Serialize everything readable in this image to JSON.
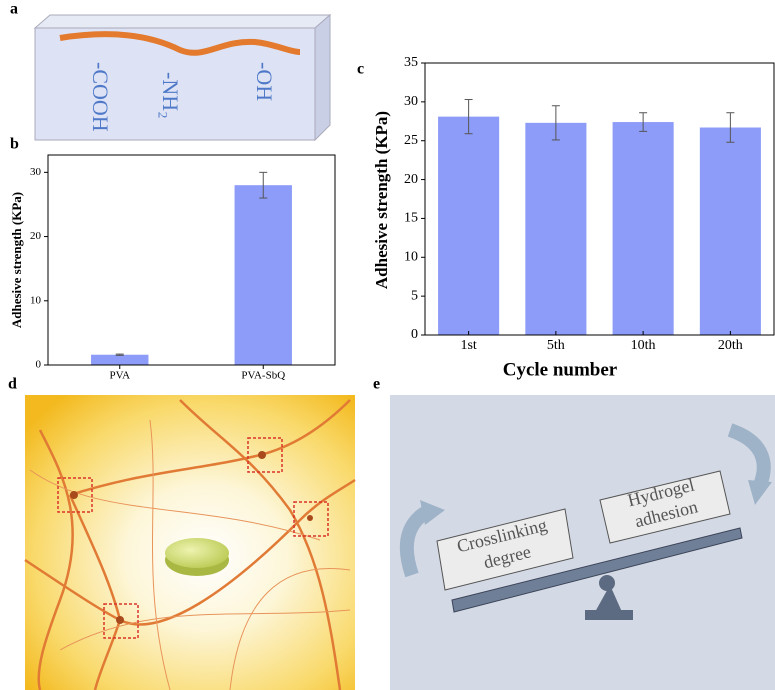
{
  "panels": {
    "a": {
      "label": "a",
      "groups": [
        "-COOH",
        "-NH₂",
        "-OH"
      ]
    },
    "b": {
      "label": "b"
    },
    "c": {
      "label": "c"
    },
    "d": {
      "label": "d"
    },
    "e": {
      "label": "e",
      "left_box": [
        "Crosslinking",
        "degree"
      ],
      "right_box": [
        "Hydrogel",
        "adhesion"
      ]
    }
  },
  "chart_data": [
    {
      "type": "bar",
      "y_label": "Adhesive strength (KPa)",
      "categories": [
        "PVA",
        "PVA-SbQ"
      ],
      "values": [
        1.6,
        28
      ],
      "errors": [
        0.1,
        2
      ],
      "color": "#8c9cf8",
      "ylim": [
        0,
        32.7
      ],
      "yticks": [
        0,
        10,
        20,
        30
      ]
    },
    {
      "type": "bar",
      "y_label": "Adhesive strength (KPa)",
      "x_label": "Cycle number",
      "categories": [
        "1st",
        "5th",
        "10th",
        "20th"
      ],
      "values": [
        28.1,
        27.3,
        27.4,
        26.7
      ],
      "errors": [
        2.2,
        2.2,
        1.2,
        1.9
      ],
      "color": "#8c9cf8",
      "ylim": [
        0,
        35
      ],
      "yticks": [
        0,
        5,
        10,
        15,
        20,
        25,
        30,
        35
      ]
    }
  ]
}
